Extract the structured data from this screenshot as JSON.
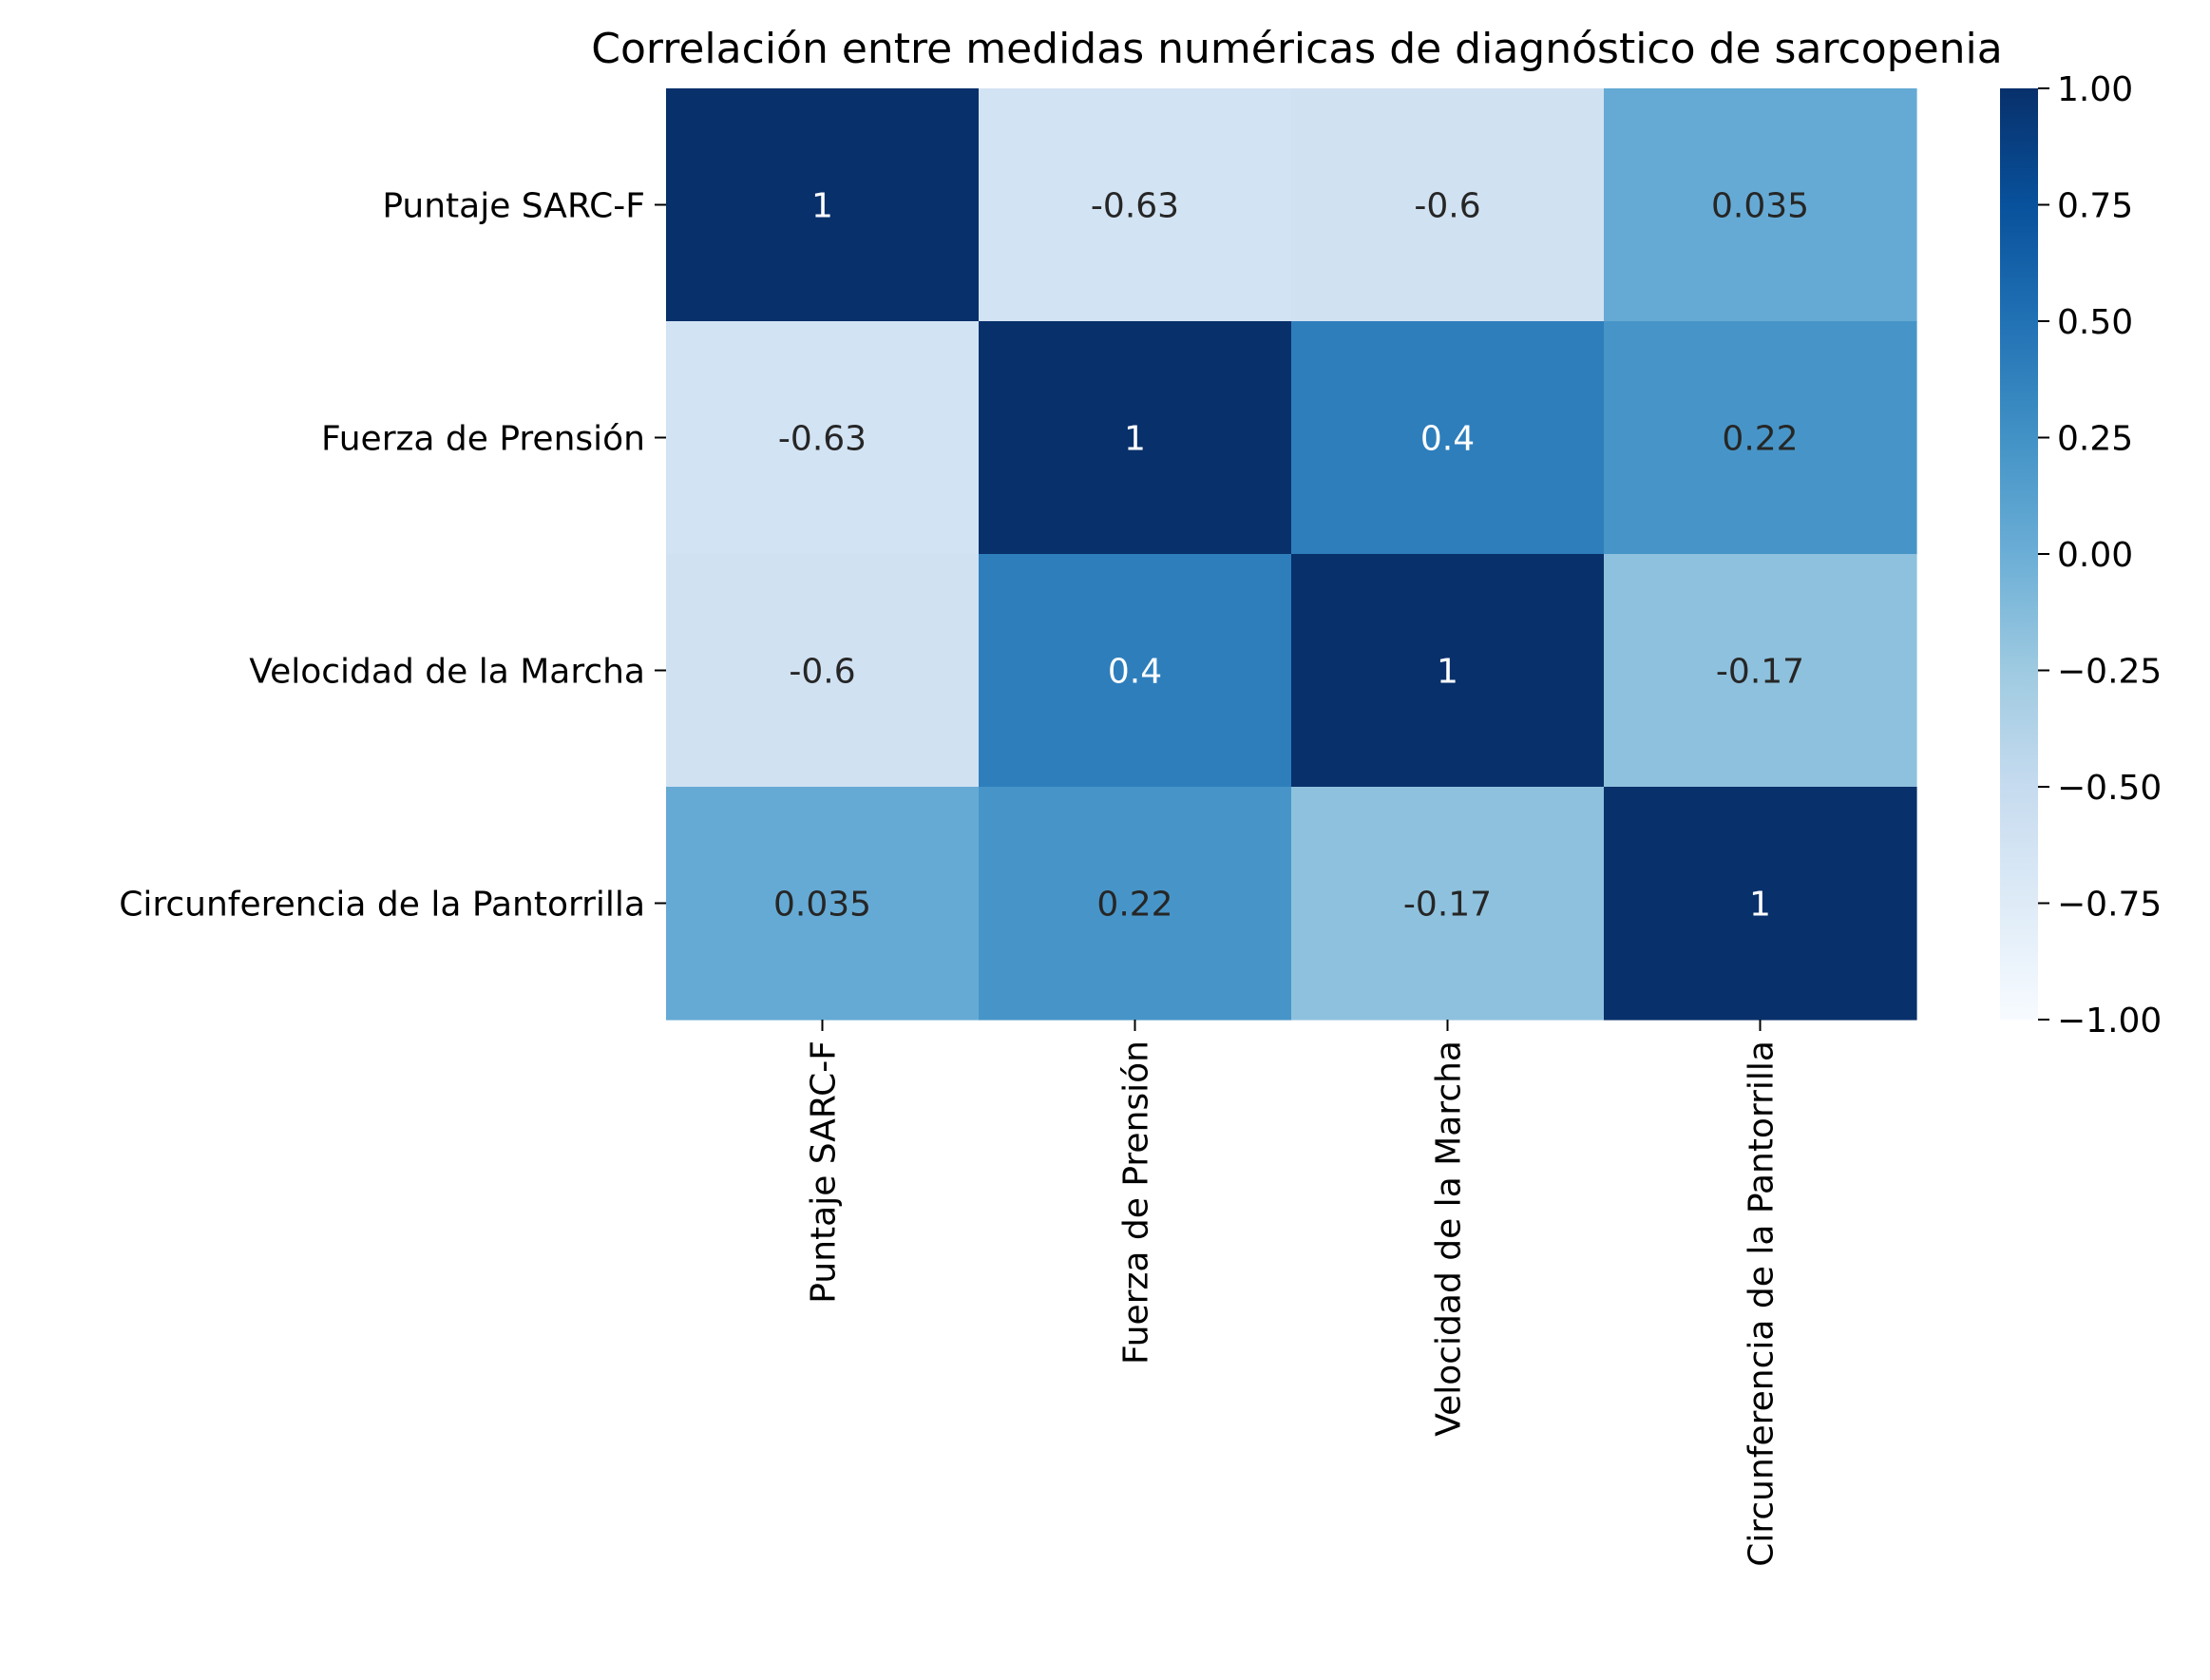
{
  "chart_data": {
    "type": "heatmap",
    "title": "Correlación entre medidas numéricas de diagnóstico de sarcopenia",
    "row_labels": [
      "Puntaje SARC-F",
      "Fuerza de Prensión",
      "Velocidad de la Marcha",
      "Circunferencia de la Pantorrilla"
    ],
    "col_labels": [
      "Puntaje SARC-F",
      "Fuerza de Prensión",
      "Velocidad de la Marcha",
      "Circunferencia de la Pantorrilla"
    ],
    "values": [
      [
        1,
        -0.63,
        -0.6,
        0.035
      ],
      [
        -0.63,
        1,
        0.4,
        0.22
      ],
      [
        -0.6,
        0.4,
        1,
        -0.17
      ],
      [
        0.035,
        0.22,
        -0.17,
        1
      ]
    ],
    "annotations": [
      [
        "1",
        "-0.63",
        "-0.6",
        "0.035"
      ],
      [
        "-0.63",
        "1",
        "0.4",
        "0.22"
      ],
      [
        "-0.6",
        "0.4",
        "1",
        "-0.17"
      ],
      [
        "0.035",
        "0.22",
        "-0.17",
        "1"
      ]
    ],
    "vmin": -1.0,
    "vmax": 1.0,
    "colormap": "Blues",
    "colorbar_ticks": [
      "1.00",
      "0.75",
      "0.50",
      "0.25",
      "0.00",
      "−0.25",
      "−0.50",
      "−0.75",
      "−1.00"
    ],
    "colorbar_tick_values": [
      1.0,
      0.75,
      0.5,
      0.25,
      0.0,
      -0.25,
      -0.5,
      -0.75,
      -1.0
    ],
    "colors": {
      "dark": "#08306b",
      "light": "#f7fbff",
      "text_dark": "#262626",
      "text_light": "#ffffff"
    }
  }
}
